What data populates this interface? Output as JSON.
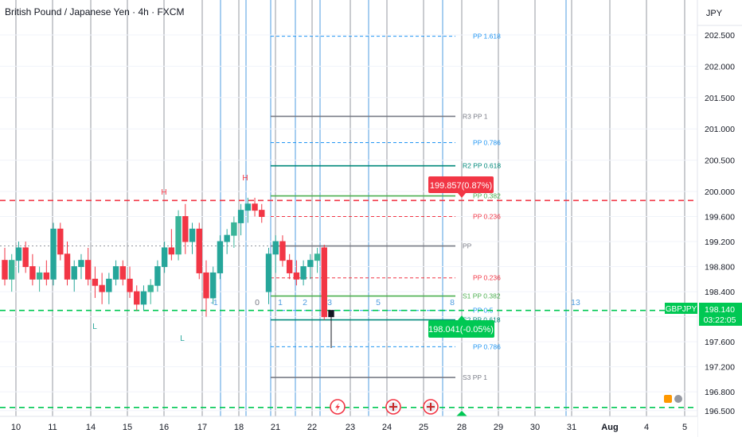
{
  "header": {
    "title": "British Pound / Japanese Yen · 4h · FXCM",
    "currency": "JPY"
  },
  "price_labels": {
    "current_symbol": "GBPJPY",
    "current_price": "198.140",
    "countdown": "03:22:05",
    "upper_flag": "199.857(0.87%)",
    "lower_flag": "198.041(-0.05%)"
  },
  "chart_data": {
    "type": "candlestick",
    "title": "British Pound / Japanese Yen · 4h · FXCM",
    "ylim": [
      196.45,
      202.9
    ],
    "y_ticks": [
      "202.500",
      "202.000",
      "201.500",
      "201.000",
      "200.500",
      "200.000",
      "199.600",
      "199.200",
      "198.800",
      "198.400",
      "198.000",
      "197.600",
      "197.200",
      "196.800",
      "196.500"
    ],
    "y_tick_values": [
      202.5,
      202.0,
      201.5,
      201.0,
      200.5,
      200.0,
      199.6,
      199.2,
      198.8,
      198.4,
      198.0,
      197.6,
      197.2,
      196.8,
      196.5
    ],
    "x_ticks": [
      "10",
      "11",
      "14",
      "15",
      "16",
      "17",
      "18",
      "21",
      "22",
      "23",
      "24",
      "25",
      "28",
      "29",
      "30",
      "31",
      "Aug",
      "4",
      "5"
    ],
    "candles": [
      [
        198.9,
        199.1,
        198.5,
        198.6
      ],
      [
        198.6,
        199.0,
        198.4,
        198.9
      ],
      [
        198.9,
        199.2,
        198.7,
        199.1
      ],
      [
        199.1,
        199.2,
        198.7,
        198.8
      ],
      [
        198.8,
        199.0,
        198.5,
        198.6
      ],
      [
        198.6,
        198.8,
        198.4,
        198.7
      ],
      [
        198.7,
        198.9,
        198.5,
        198.6
      ],
      [
        198.6,
        199.5,
        198.5,
        199.4
      ],
      [
        199.4,
        199.5,
        198.9,
        199.0
      ],
      [
        199.0,
        199.2,
        198.5,
        198.6
      ],
      [
        198.6,
        198.9,
        198.4,
        198.8
      ],
      [
        198.8,
        199.0,
        198.6,
        198.9
      ],
      [
        198.9,
        199.1,
        198.5,
        198.6
      ],
      [
        198.6,
        198.8,
        198.3,
        198.5
      ],
      [
        198.5,
        198.7,
        198.2,
        198.4
      ],
      [
        198.4,
        198.7,
        198.2,
        198.6
      ],
      [
        198.6,
        198.9,
        198.5,
        198.8
      ],
      [
        198.8,
        198.9,
        198.5,
        198.6
      ],
      [
        198.6,
        198.8,
        198.3,
        198.4
      ],
      [
        198.4,
        198.5,
        198.1,
        198.2
      ],
      [
        198.2,
        198.5,
        198.1,
        198.4
      ],
      [
        198.4,
        198.6,
        198.2,
        198.5
      ],
      [
        198.5,
        198.9,
        198.4,
        198.8
      ],
      [
        198.8,
        199.2,
        198.7,
        199.1
      ],
      [
        199.1,
        199.4,
        198.9,
        199.0
      ],
      [
        199.0,
        199.7,
        198.9,
        199.6
      ],
      [
        199.6,
        199.8,
        199.0,
        199.2
      ],
      [
        199.2,
        199.5,
        199.0,
        199.4
      ],
      [
        199.4,
        199.5,
        198.6,
        198.7
      ],
      [
        198.7,
        198.9,
        198.0,
        198.3
      ],
      [
        198.3,
        198.8,
        198.2,
        198.7
      ],
      [
        198.7,
        199.3,
        198.6,
        199.2
      ],
      [
        199.2,
        199.4,
        199.0,
        199.3
      ],
      [
        199.3,
        199.6,
        199.1,
        199.5
      ],
      [
        199.5,
        199.8,
        199.3,
        199.7
      ],
      [
        199.7,
        199.9,
        199.5,
        199.8
      ],
      [
        199.8,
        199.9,
        199.6,
        199.7
      ],
      [
        199.7,
        199.8,
        199.5,
        199.6
      ],
      [
        198.4,
        199.1,
        198.2,
        199.0
      ],
      [
        199.0,
        199.3,
        198.7,
        199.2
      ],
      [
        199.2,
        199.3,
        198.8,
        198.9
      ],
      [
        198.9,
        199.0,
        198.6,
        198.7
      ],
      [
        198.7,
        198.9,
        198.5,
        198.6
      ],
      [
        198.6,
        198.9,
        198.5,
        198.8
      ],
      [
        198.8,
        199.0,
        198.6,
        198.9
      ],
      [
        198.9,
        199.1,
        198.7,
        199.0
      ],
      [
        199.1,
        199.15,
        197.95,
        198.0
      ],
      [
        198.0,
        198.1,
        197.5,
        198.1
      ]
    ],
    "pivot_levels": [
      {
        "label": "PP 1.618",
        "value": 202.48,
        "style": "dash",
        "color": "#2196f3"
      },
      {
        "label": "R3 PP 1",
        "value": 201.2,
        "style": "solid",
        "color": "#787b86"
      },
      {
        "label": "PP 0.786",
        "value": 200.78,
        "style": "dash",
        "color": "#2196f3"
      },
      {
        "label": "R2 PP 0.618",
        "value": 200.41,
        "style": "solid",
        "color": "#00897b"
      },
      {
        "label": "PP 0.382",
        "value": 199.93,
        "style": "solid",
        "color": "#4caf50"
      },
      {
        "label": "PP 0.236",
        "value": 199.6,
        "style": "dash",
        "color": "#f23645"
      },
      {
        "label": "PP",
        "value": 199.13,
        "style": "solid",
        "color": "#787b86"
      },
      {
        "label": "PP 0.236",
        "value": 198.62,
        "style": "dash",
        "color": "#f23645"
      },
      {
        "label": "S1 PP 0.382",
        "value": 198.33,
        "style": "solid",
        "color": "#4caf50"
      },
      {
        "label": "PP 0.5",
        "value": 198.1,
        "style": "dash",
        "color": "#2196f3"
      },
      {
        "label": "S2 PP 0.618",
        "value": 197.95,
        "style": "solid",
        "color": "#00897b"
      },
      {
        "label": "PP 0.786",
        "value": 197.52,
        "style": "dash",
        "color": "#2196f3"
      },
      {
        "label": "S3 PP 1",
        "value": 197.03,
        "style": "solid",
        "color": "#787b86"
      }
    ],
    "horizontal_lines": [
      {
        "value": 199.857,
        "color": "#f23645",
        "style": "dash"
      },
      {
        "value": 198.1,
        "color": "#00c853",
        "style": "dash"
      },
      {
        "value": 196.55,
        "color": "#00c853",
        "style": "dash"
      }
    ],
    "fib_time_labels": [
      {
        "label": "-1"
      },
      {
        "label": "0"
      },
      {
        "label": "1"
      },
      {
        "label": "2"
      },
      {
        "label": "3"
      },
      {
        "label": "5"
      },
      {
        "label": "8"
      },
      {
        "label": "13"
      }
    ],
    "pivot_markers": [
      {
        "label": "H",
        "color": "#f23645"
      },
      {
        "label": "H",
        "color": "#f23645"
      },
      {
        "label": "L",
        "color": "#26a69a"
      },
      {
        "label": "L",
        "color": "#26a69a"
      }
    ],
    "grid": true
  }
}
